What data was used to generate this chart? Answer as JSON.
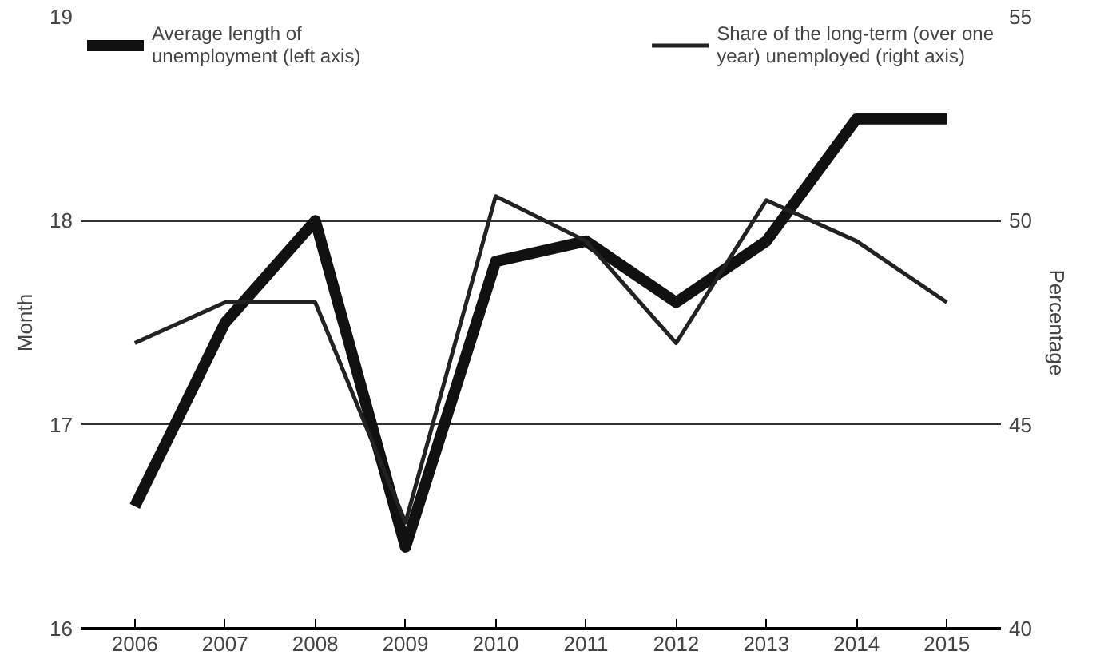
{
  "chart_data": {
    "type": "line",
    "categories": [
      "2006",
      "2007",
      "2008",
      "2009",
      "2010",
      "2011",
      "2012",
      "2013",
      "2014",
      "2015"
    ],
    "series": [
      {
        "name": "Average length of unemployment (left axis)",
        "color": "#111111",
        "values": [
          16.6,
          17.5,
          18.0,
          16.4,
          17.8,
          17.9,
          17.6,
          17.9,
          18.5,
          18.5
        ]
      },
      {
        "name": "Share of the long-term (over one year) unemployed (right axis)",
        "color": "#222222",
        "axis": "y2",
        "values": [
          47,
          48,
          48,
          42.6,
          50.6,
          49.5,
          47,
          50.5,
          49.5,
          48
        ]
      }
    ],
    "ylabel": "Month",
    "y2label": "Percentage",
    "ylim": [
      16,
      19
    ],
    "yticks": [
      16,
      17,
      18,
      19
    ],
    "y2lim": [
      40,
      55
    ],
    "y2ticks": [
      40,
      45,
      50,
      55
    ],
    "grid": "y",
    "legend": "top",
    "line_style": "solid",
    "marker": "none"
  }
}
